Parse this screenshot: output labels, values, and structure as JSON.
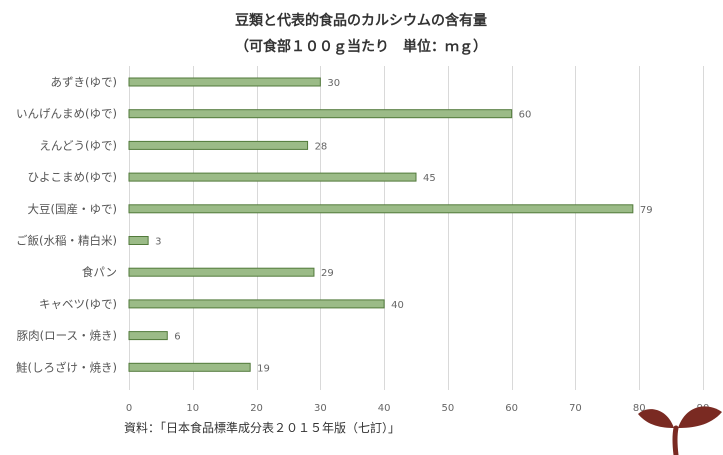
{
  "chart_data": {
    "type": "bar",
    "orientation": "horizontal",
    "title": "豆類と代表的食品のカルシウムの含有量",
    "subtitle": "（可食部１００ｇ当たり　単位：ｍｇ）",
    "categories": [
      "あずき(ゆで)",
      "いんげんまめ(ゆで)",
      "えんどう(ゆで)",
      "ひよこまめ(ゆで)",
      "大豆(国産・ゆで)",
      "ご飯(水稲・精白米)",
      "食パン",
      "キャベツ(ゆで)",
      "豚肉(ロース・焼き)",
      "鮭(しろざけ・焼き)"
    ],
    "values": [
      30,
      60,
      28,
      45,
      79,
      3,
      29,
      40,
      6,
      19
    ],
    "xlim": [
      0,
      90
    ],
    "xticks": [
      0,
      10,
      20,
      30,
      40,
      50,
      60,
      70,
      80,
      90
    ],
    "grid": true,
    "data_labels": true,
    "bar_color": "#9bbb87",
    "bar_edge_color": "#527a3b",
    "source": "資料：「日本食品標準成分表２０１５年版（七訂）」"
  },
  "logo": {
    "name": "sprout-logo",
    "leaf_color": "#7a2a22"
  }
}
